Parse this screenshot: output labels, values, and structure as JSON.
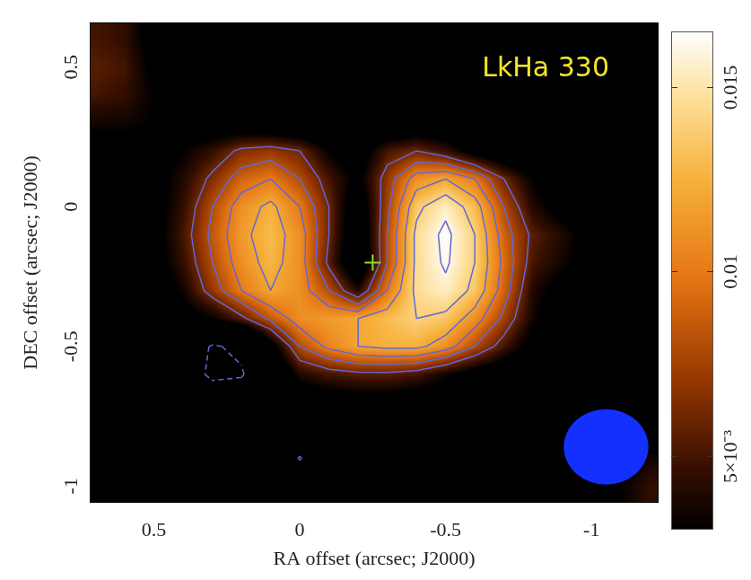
{
  "chart_data": {
    "type": "heatmap",
    "title": "LkHa 330",
    "x_label": "RA offset (arcsec; J2000)",
    "y_label": "DEC offset (arcsec; J2000)",
    "xlim": [
      0.72,
      -1.23
    ],
    "xticks": [
      0.5,
      0,
      -0.5,
      -1
    ],
    "ylim": [
      -1.06,
      0.66
    ],
    "yticks": [
      -1,
      -0.5,
      0,
      0.5
    ],
    "grid": false,
    "x": [
      0.7,
      0.6,
      0.5,
      0.4,
      0.3,
      0.2,
      0.1,
      0,
      -0.1,
      -0.2,
      -0.3,
      -0.4,
      -0.5,
      -0.6,
      -0.7,
      -0.8,
      -0.9,
      -1.0,
      -1.1,
      -1.2
    ],
    "y": [
      0.6,
      0.5,
      0.4,
      0.3,
      0.2,
      0.1,
      0,
      -0.1,
      -0.2,
      -0.3,
      -0.4,
      -0.5,
      -0.6,
      -0.7,
      -0.8,
      -0.9,
      -1.0
    ],
    "cells": [
      [
        0.005,
        0.0045,
        0.002,
        0.0005,
        0,
        0,
        0,
        0,
        0,
        0,
        0,
        0,
        0,
        0,
        0,
        0,
        0,
        0,
        0,
        0
      ],
      [
        0.0055,
        0.005,
        0.0025,
        0.0005,
        0,
        0,
        0,
        0,
        0,
        0,
        0,
        0,
        0,
        0,
        0,
        0,
        0,
        0,
        0,
        0
      ],
      [
        0.005,
        0.0045,
        0.003,
        0.001,
        0,
        0,
        0,
        0,
        0,
        0,
        0,
        0,
        0,
        0,
        0,
        0,
        0,
        0,
        0,
        0
      ],
      [
        0.0035,
        0.0035,
        0.003,
        0.002,
        0.001,
        0.001,
        0.0005,
        0,
        0,
        0,
        0,
        0.0005,
        0.0005,
        0,
        0,
        0,
        0,
        0,
        0,
        0
      ],
      [
        0.002,
        0.002,
        0.0025,
        0.003,
        0.0045,
        0.0065,
        0.007,
        0.006,
        0.003,
        0.0015,
        0.005,
        0.006,
        0.0045,
        0.002,
        0.0005,
        0,
        0,
        0,
        0,
        0
      ],
      [
        0.001,
        0.001,
        0.002,
        0.004,
        0.0065,
        0.009,
        0.01,
        0.008,
        0.005,
        0.0025,
        0.007,
        0.011,
        0.012,
        0.01,
        0.006,
        0.003,
        0.001,
        0,
        0,
        0
      ],
      [
        0.0005,
        0.001,
        0.002,
        0.0045,
        0.008,
        0.011,
        0.0125,
        0.01,
        0.006,
        0.001,
        0.0075,
        0.0135,
        0.0155,
        0.013,
        0.008,
        0.004,
        0.002,
        0.0005,
        0,
        0
      ],
      [
        0,
        0.0005,
        0.002,
        0.005,
        0.0085,
        0.0115,
        0.013,
        0.011,
        0.006,
        0.0005,
        0.008,
        0.0145,
        0.0165,
        0.014,
        0.009,
        0.0055,
        0.004,
        0.002,
        0.0005,
        0
      ],
      [
        0,
        0.0005,
        0.002,
        0.0045,
        0.008,
        0.011,
        0.0127,
        0.011,
        0.0055,
        0,
        0.008,
        0.0145,
        0.0163,
        0.014,
        0.0095,
        0.005,
        0.0035,
        0.002,
        0.0005,
        0
      ],
      [
        0,
        0,
        0.0015,
        0.0035,
        0.007,
        0.01,
        0.012,
        0.011,
        0.008,
        0.004,
        0.01,
        0.0145,
        0.0155,
        0.0135,
        0.009,
        0.004,
        0.002,
        0.0005,
        0,
        0
      ],
      [
        0,
        0,
        0.001,
        0.002,
        0.003,
        0.0055,
        0.0085,
        0.011,
        0.0115,
        0.012,
        0.013,
        0.014,
        0.0135,
        0.011,
        0.0075,
        0.0035,
        0.001,
        0,
        0,
        0
      ],
      [
        0,
        0,
        0,
        -0.002,
        -0.0065,
        -0.005,
        0.002,
        0.008,
        0.0105,
        0.012,
        0.0125,
        0.0125,
        0.011,
        0.008,
        0.005,
        0.002,
        0.0005,
        0,
        0,
        0
      ],
      [
        0,
        0,
        0,
        -0.003,
        -0.007,
        -0.0065,
        -0.001,
        0.004,
        0.005,
        0.0055,
        0.0055,
        0.005,
        0.0035,
        0.002,
        0.001,
        0,
        0,
        0,
        0,
        0
      ],
      [
        0,
        0,
        0,
        -0.001,
        -0.0025,
        -0.002,
        0,
        0.001,
        0.0015,
        0.002,
        0.002,
        0.0015,
        0.001,
        0.0005,
        0,
        0,
        0,
        0,
        0,
        0
      ],
      [
        0,
        0,
        0,
        0,
        0,
        0,
        0,
        -0.0015,
        0,
        0,
        0,
        0,
        0,
        0,
        0,
        0,
        0,
        0,
        0.0005,
        0.001
      ],
      [
        0,
        0,
        0,
        0,
        0,
        0,
        -0.0015,
        -0.0063,
        -0.0015,
        0,
        0,
        0,
        0,
        0,
        0,
        0,
        0,
        0.001,
        0.002,
        0.0035
      ],
      [
        0,
        0,
        0,
        0,
        0,
        0,
        0,
        -0.002,
        0,
        0,
        0,
        0,
        0,
        0,
        0,
        0,
        0,
        0.0015,
        0.003,
        0.0045
      ]
    ],
    "color_range": [
      0.003,
      0.0165
    ],
    "color_ticks": [
      {
        "value": 0.005,
        "label": "5×10⁻³"
      },
      0.01,
      0.015
    ],
    "contour_levels": [
      -0.006,
      0.006,
      0.008,
      0.01,
      0.012,
      0.014,
      0.016
    ],
    "star": {
      "x": -0.25,
      "y": -0.2,
      "color": "#86dc3c",
      "marker": "cross"
    },
    "beam": {
      "x": -1.05,
      "y": -0.86,
      "width": 0.29,
      "height": 0.27,
      "color": "#1430ff"
    }
  }
}
